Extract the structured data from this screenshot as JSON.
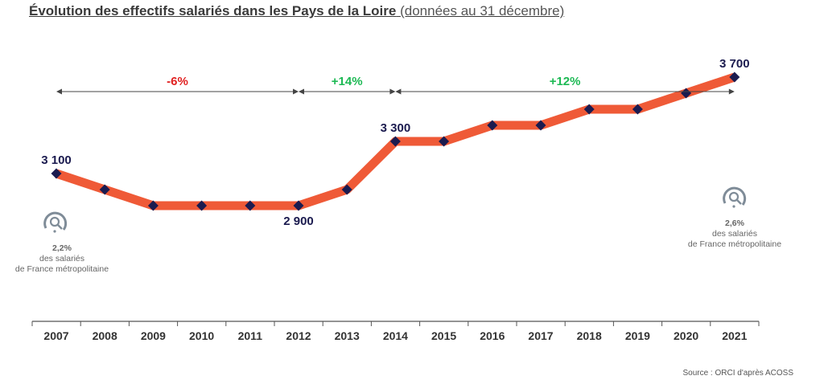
{
  "title": "Évolution des effectifs salariés dans les Pays de la Loire",
  "subtitle": "(données au 31 décembre)",
  "source": "Source : ORCI d'après ACOSS",
  "colors": {
    "line": "#EF5A37",
    "marker": "#1B1B4F",
    "negative": "#E02020",
    "positive": "#1DB954",
    "axis": "#555555",
    "icon": "#7F8C98",
    "note": "#666666"
  },
  "chart_data": {
    "type": "line",
    "categories": [
      "2007",
      "2008",
      "2009",
      "2010",
      "2011",
      "2012",
      "2013",
      "2014",
      "2015",
      "2016",
      "2017",
      "2018",
      "2019",
      "2020",
      "2021"
    ],
    "series": [
      {
        "values": [
          3100,
          3000,
          2900,
          2900,
          2900,
          2900,
          3000,
          3300,
          3300,
          3400,
          3400,
          3500,
          3500,
          3600,
          3700
        ]
      }
    ],
    "data_labels": [
      {
        "category": "2007",
        "text": "3 100"
      },
      {
        "category": "2012",
        "text": "2 900"
      },
      {
        "category": "2014",
        "text": "3 300"
      },
      {
        "category": "2021",
        "text": "3 700"
      }
    ],
    "periods": [
      {
        "from": "2007",
        "to": "2012",
        "label": "-6%",
        "sign": "negative"
      },
      {
        "from": "2012",
        "to": "2014",
        "label": "+14%",
        "sign": "positive"
      },
      {
        "from": "2014",
        "to": "2021",
        "label": "+12%",
        "sign": "positive"
      }
    ],
    "annotations": [
      {
        "category": "2007",
        "pct": "2,2%",
        "line1": "des salariés",
        "line2": "de France métropolitaine"
      },
      {
        "category": "2021",
        "pct": "2,6%",
        "line1": "des salariés",
        "line2": "de France métropolitaine"
      }
    ]
  }
}
